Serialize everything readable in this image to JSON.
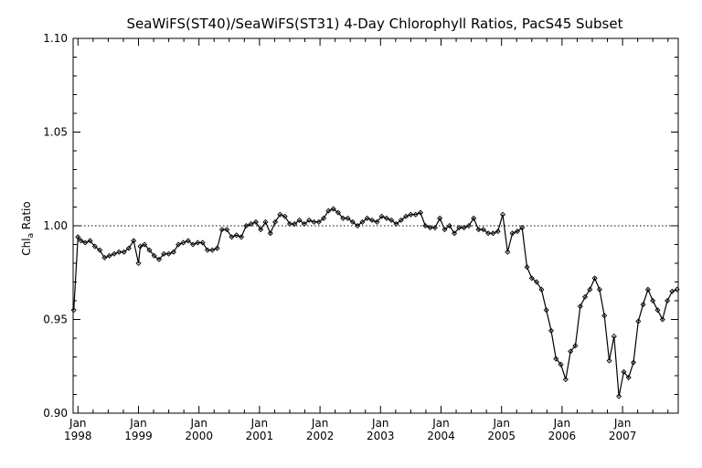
{
  "chart_data": {
    "type": "line",
    "title": "SeaWiFS(ST40)/SeaWiFS(ST31) 4-Day Chlorophyll Ratios, PacS45 Subset",
    "ylabel": {
      "base": "Chl",
      "sub": "a",
      "rest": " Ratio"
    },
    "xlabel": "",
    "xlim": [
      1997.92,
      2007.92
    ],
    "ylim": [
      0.9,
      1.1
    ],
    "yticks": [
      {
        "value": 0.9,
        "label": "0.90"
      },
      {
        "value": 0.95,
        "label": "0.95"
      },
      {
        "value": 1.0,
        "label": "1.00"
      },
      {
        "value": 1.05,
        "label": "1.05"
      },
      {
        "value": 1.1,
        "label": "1.10"
      }
    ],
    "xticks": [
      {
        "value": 1998,
        "month": "Jan",
        "year": "1998"
      },
      {
        "value": 1999,
        "month": "Jan",
        "year": "1999"
      },
      {
        "value": 2000,
        "month": "Jan",
        "year": "2000"
      },
      {
        "value": 2001,
        "month": "Jan",
        "year": "2001"
      },
      {
        "value": 2002,
        "month": "Jan",
        "year": "2002"
      },
      {
        "value": 2003,
        "month": "Jan",
        "year": "2003"
      },
      {
        "value": 2004,
        "month": "Jan",
        "year": "2004"
      },
      {
        "value": 2005,
        "month": "Jan",
        "year": "2005"
      },
      {
        "value": 2006,
        "month": "Jan",
        "year": "2006"
      },
      {
        "value": 2007,
        "month": "Jan",
        "year": "2007"
      }
    ],
    "reference_line": {
      "y": 1.0,
      "style": "dotted"
    },
    "grid": false,
    "legend": "none",
    "marker": "diamond",
    "line_color": "#000000",
    "series": [
      {
        "x": [
          1997.93,
          1998.0,
          1998.05,
          1998.12,
          1998.2,
          1998.28,
          1998.36,
          1998.44,
          1998.52,
          1998.6,
          1998.68,
          1998.76,
          1998.84,
          1998.92,
          1999.0,
          1999.03,
          1999.1,
          1999.18,
          1999.26,
          1999.34,
          1999.42,
          1999.5,
          1999.58,
          1999.66,
          1999.74,
          1999.82,
          1999.9,
          1999.98,
          2000.06,
          2000.14,
          2000.22,
          2000.3,
          2000.38,
          2000.46,
          2000.54,
          2000.62,
          2000.7,
          2000.78,
          2000.86,
          2000.94,
          2001.02,
          2001.1,
          2001.18,
          2001.26,
          2001.34,
          2001.42,
          2001.5,
          2001.58,
          2001.66,
          2001.74,
          2001.82,
          2001.9,
          2001.98,
          2002.06,
          2002.14,
          2002.22,
          2002.3,
          2002.38,
          2002.46,
          2002.54,
          2002.62,
          2002.7,
          2002.78,
          2002.86,
          2002.94,
          2003.02,
          2003.1,
          2003.18,
          2003.26,
          2003.34,
          2003.42,
          2003.5,
          2003.58,
          2003.66,
          2003.74,
          2003.82,
          2003.9,
          2003.98,
          2004.06,
          2004.14,
          2004.22,
          2004.3,
          2004.38,
          2004.46,
          2004.54,
          2004.62,
          2004.7,
          2004.78,
          2004.86,
          2004.94,
          2005.02,
          2005.1,
          2005.18,
          2005.26,
          2005.34,
          2005.42,
          2005.5,
          2005.58,
          2005.66,
          2005.74,
          2005.82,
          2005.9,
          2005.98,
          2006.06,
          2006.14,
          2006.22,
          2006.3,
          2006.38,
          2006.46,
          2006.54,
          2006.62,
          2006.7,
          2006.78,
          2006.86,
          2006.94,
          2007.02,
          2007.1,
          2007.18,
          2007.26,
          2007.34,
          2007.42,
          2007.5,
          2007.58,
          2007.66,
          2007.74,
          2007.82,
          2007.9
        ],
        "y": [
          0.955,
          0.994,
          0.992,
          0.991,
          0.992,
          0.989,
          0.987,
          0.983,
          0.984,
          0.985,
          0.986,
          0.986,
          0.988,
          0.992,
          0.98,
          0.989,
          0.99,
          0.987,
          0.984,
          0.982,
          0.985,
          0.985,
          0.986,
          0.99,
          0.991,
          0.992,
          0.99,
          0.991,
          0.991,
          0.987,
          0.987,
          0.988,
          0.998,
          0.998,
          0.994,
          0.995,
          0.994,
          1.0,
          1.001,
          1.002,
          0.998,
          1.002,
          0.996,
          1.002,
          1.006,
          1.005,
          1.001,
          1.001,
          1.003,
          1.001,
          1.003,
          1.002,
          1.002,
          1.004,
          1.008,
          1.009,
          1.007,
          1.004,
          1.004,
          1.002,
          1.0,
          1.002,
          1.004,
          1.003,
          1.002,
          1.005,
          1.004,
          1.003,
          1.001,
          1.003,
          1.005,
          1.006,
          1.006,
          1.007,
          1.0,
          0.999,
          0.999,
          1.004,
          0.998,
          1.0,
          0.996,
          0.999,
          0.999,
          1.0,
          1.004,
          0.998,
          0.998,
          0.996,
          0.996,
          0.997,
          1.006,
          0.986,
          0.996,
          0.997,
          0.999,
          0.978,
          0.972,
          0.97,
          0.966,
          0.955,
          0.944,
          0.929,
          0.926,
          0.918,
          0.933,
          0.936,
          0.957,
          0.962,
          0.966,
          0.972,
          0.966,
          0.952,
          0.928,
          0.941,
          0.909,
          0.922,
          0.919,
          0.927,
          0.949,
          0.958,
          0.966,
          0.96,
          0.955,
          0.95,
          0.96,
          0.965,
          0.966
        ]
      }
    ]
  }
}
